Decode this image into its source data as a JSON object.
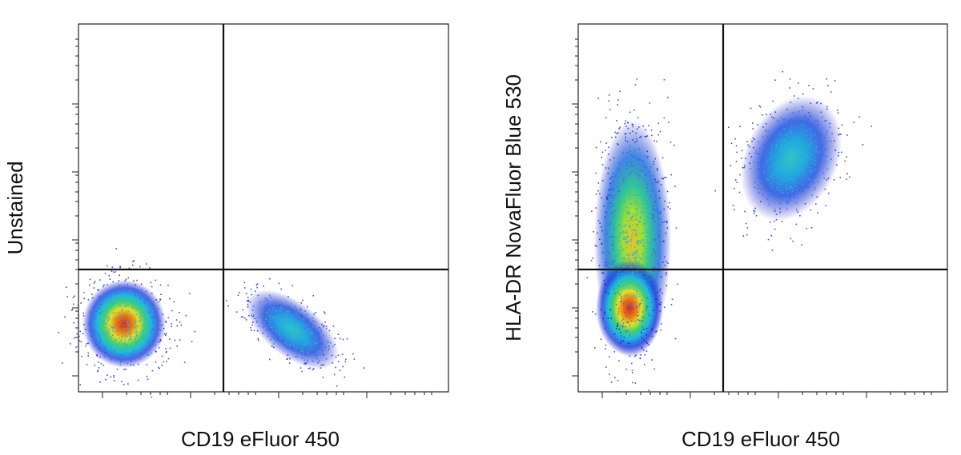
{
  "panels": [
    {
      "y_label": "Unstained",
      "x_label": "CD19 eFluor 450"
    },
    {
      "y_label": "HLA-DR NovaFluor Blue 530",
      "x_label": "CD19 eFluor 450"
    }
  ]
}
